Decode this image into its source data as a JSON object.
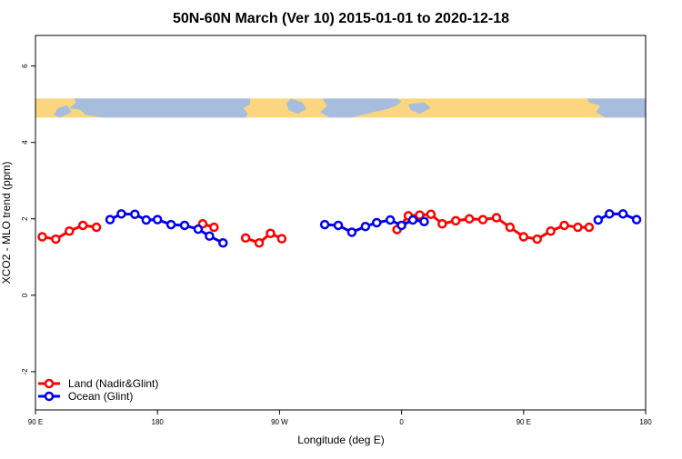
{
  "chart_data": {
    "type": "line",
    "title": "50N-60N March (Ver 10)   2015-01-01 to 2020-12-18",
    "xlabel": "Longitude (deg E)",
    "ylabel": "XCO2 - MLO trend (ppm)",
    "xlim": [
      -90,
      180
    ],
    "ylim": [
      -3.0,
      6.8
    ],
    "x_ticks": [
      {
        "value": -90,
        "label": "90 E"
      },
      {
        "value": -36,
        "label": "180"
      },
      {
        "value": 18,
        "label": "90 W"
      },
      {
        "value": 72,
        "label": "0"
      },
      {
        "value": 126,
        "label": "90 E"
      },
      {
        "value": 180,
        "label": "180"
      }
    ],
    "y_ticks": [
      {
        "value": -2,
        "label": "-2"
      },
      {
        "value": 0,
        "label": "0"
      },
      {
        "value": 2,
        "label": "2"
      },
      {
        "value": 4,
        "label": "4"
      },
      {
        "value": 6,
        "label": "6"
      }
    ],
    "map_strip": {
      "y_range": [
        4.65,
        5.15
      ],
      "ocean_color": "#a7bddd",
      "land_color": "#fbd67e"
    },
    "grid": false,
    "legend_position": "bottom-left",
    "series": [
      {
        "name": "Land (Nadir&Glint)",
        "color": "#ff0000",
        "segments": [
          {
            "x": [
              -87,
              -81,
              -75,
              -69,
              -63
            ],
            "y": [
              1.53,
              1.47,
              1.68,
              1.83,
              1.78
            ]
          },
          {
            "x": [
              -16,
              -11
            ],
            "y": [
              1.87,
              1.78
            ]
          },
          {
            "x": [
              3,
              9,
              14,
              19
            ],
            "y": [
              1.5,
              1.37,
              1.62,
              1.48
            ]
          },
          {
            "x": [
              70,
              75,
              80,
              85,
              90,
              96,
              102,
              108,
              114,
              120,
              126,
              132,
              138,
              144,
              150,
              155
            ],
            "y": [
              1.72,
              2.08,
              2.1,
              2.12,
              1.87,
              1.95,
              2.0,
              1.98,
              2.03,
              1.78,
              1.53,
              1.47,
              1.68,
              1.83,
              1.78,
              1.78
            ]
          }
        ]
      },
      {
        "name": "Ocean (Glint)",
        "color": "#0000ee",
        "segments": [
          {
            "x": [
              -57,
              -52,
              -46,
              -41,
              -36,
              -30,
              -24,
              -18,
              -13,
              -7,
              -2,
              2
            ],
            "y": [
              1.98,
              2.13,
              2.12,
              1.97,
              1.98,
              1.85,
              1.83,
              1.73,
              1.55,
              1.37,
              null,
              null
            ]
          },
          {
            "x": [
              38,
              44,
              50,
              56,
              61,
              67,
              72,
              77,
              82
            ],
            "y": [
              1.85,
              1.83,
              1.65,
              1.8,
              1.9,
              1.97,
              1.83,
              1.97,
              1.93
            ]
          },
          {
            "x": [
              159,
              164,
              170,
              176
            ],
            "y": [
              1.97,
              2.13,
              2.13,
              1.98
            ]
          }
        ]
      }
    ]
  }
}
